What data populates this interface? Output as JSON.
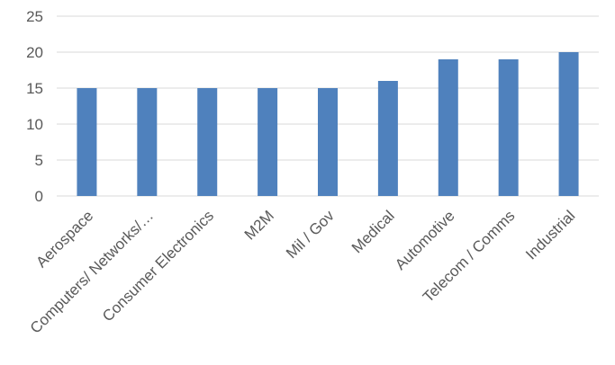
{
  "chart_data": {
    "type": "bar",
    "categories": [
      "Aerospace",
      "Computers/ Networks/…",
      "Consumer Electronics",
      "M2M",
      "Mil / Gov",
      "Medical",
      "Automotive",
      "Telecom / Comms",
      "Industrial"
    ],
    "values": [
      15,
      15,
      15,
      15,
      15,
      16,
      19,
      19,
      20
    ],
    "title": "",
    "xlabel": "",
    "ylabel": "",
    "ylim": [
      0,
      25
    ],
    "yticks": [
      "0",
      "5",
      "10",
      "15",
      "20",
      "25"
    ],
    "grid": true,
    "legend": "none",
    "bar_color": "#4f81bd"
  }
}
